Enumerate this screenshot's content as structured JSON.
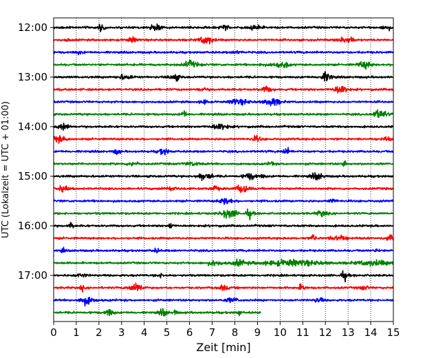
{
  "chart_data": {
    "type": "line",
    "title": "",
    "xlabel": "Zeit  [min]",
    "ylabel": "UTC (Lokalzeit = UTC + 01:00)",
    "xlim": [
      0,
      15
    ],
    "x_ticks": [
      0,
      1,
      2,
      3,
      4,
      5,
      6,
      7,
      8,
      9,
      10,
      11,
      12,
      13,
      14,
      15
    ],
    "x_grid": true,
    "y_grid": false,
    "y_ticks": [
      "12:00",
      "13:00",
      "14:00",
      "15:00",
      "16:00",
      "17:00"
    ],
    "trace_interval_min": 15,
    "color_cycle": [
      "#000000",
      "#ff0000",
      "#0000ff",
      "#008000"
    ],
    "series": [
      {
        "start": "12:00",
        "end_min": 15,
        "color": "#000000"
      },
      {
        "start": "12:15",
        "end_min": 15,
        "color": "#ff0000"
      },
      {
        "start": "12:30",
        "end_min": 15,
        "color": "#0000ff"
      },
      {
        "start": "12:45",
        "end_min": 15,
        "color": "#008000"
      },
      {
        "start": "13:00",
        "end_min": 15,
        "color": "#000000"
      },
      {
        "start": "13:15",
        "end_min": 15,
        "color": "#ff0000"
      },
      {
        "start": "13:30",
        "end_min": 15,
        "color": "#0000ff"
      },
      {
        "start": "13:45",
        "end_min": 15,
        "color": "#008000"
      },
      {
        "start": "14:00",
        "end_min": 15,
        "color": "#000000"
      },
      {
        "start": "14:15",
        "end_min": 15,
        "color": "#ff0000"
      },
      {
        "start": "14:30",
        "end_min": 15,
        "color": "#0000ff"
      },
      {
        "start": "14:45",
        "end_min": 15,
        "color": "#008000"
      },
      {
        "start": "15:00",
        "end_min": 15,
        "color": "#000000"
      },
      {
        "start": "15:15",
        "end_min": 15,
        "color": "#ff0000"
      },
      {
        "start": "15:30",
        "end_min": 15,
        "color": "#0000ff"
      },
      {
        "start": "15:45",
        "end_min": 15,
        "color": "#008000"
      },
      {
        "start": "16:00",
        "end_min": 15,
        "color": "#000000"
      },
      {
        "start": "16:15",
        "end_min": 15,
        "color": "#ff0000"
      },
      {
        "start": "16:30",
        "end_min": 15,
        "color": "#0000ff"
      },
      {
        "start": "16:45",
        "end_min": 15,
        "color": "#008000"
      },
      {
        "start": "17:00",
        "end_min": 15,
        "color": "#000000"
      },
      {
        "start": "17:15",
        "end_min": 15,
        "color": "#ff0000"
      },
      {
        "start": "17:30",
        "end_min": 15,
        "color": "#0000ff"
      },
      {
        "start": "17:45",
        "end_min": 9.15,
        "color": "#008000"
      }
    ]
  }
}
